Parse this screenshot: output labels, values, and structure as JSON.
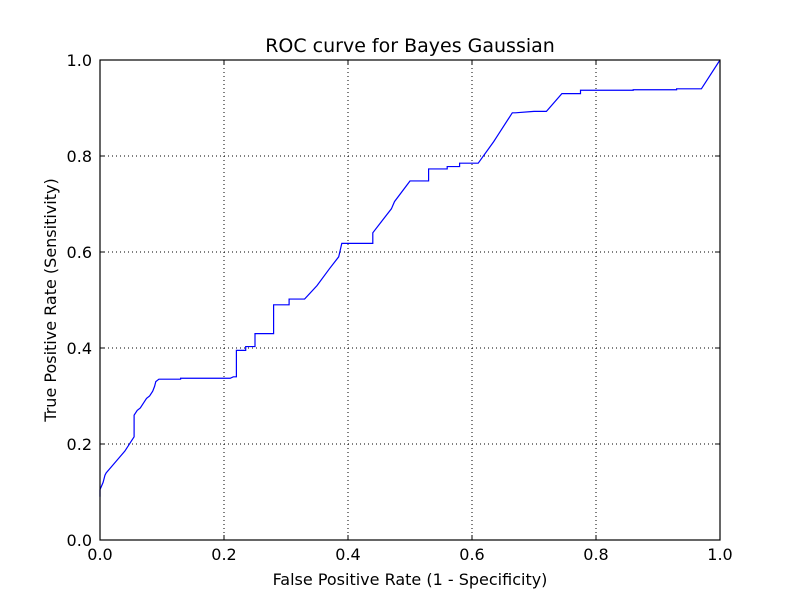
{
  "chart_data": {
    "type": "line",
    "title": "ROC curve for Bayes Gaussian",
    "xlabel": "False Positive Rate (1 - Specificity)",
    "ylabel": "True Positive Rate (Sensitivity)",
    "xlim": [
      0.0,
      1.0
    ],
    "ylim": [
      0.0,
      1.0
    ],
    "xticks": [
      "0.0",
      "0.2",
      "0.4",
      "0.6",
      "0.8",
      "1.0"
    ],
    "yticks": [
      "0.0",
      "0.2",
      "0.4",
      "0.6",
      "0.8",
      "1.0"
    ],
    "grid": true,
    "series": [
      {
        "color": "#0000ff",
        "x": [
          0.0,
          0.0,
          0.005,
          0.008,
          0.01,
          0.02,
          0.03,
          0.04,
          0.05,
          0.055,
          0.055,
          0.06,
          0.065,
          0.07,
          0.075,
          0.08,
          0.085,
          0.088,
          0.09,
          0.095,
          0.13,
          0.13,
          0.21,
          0.215,
          0.22,
          0.22,
          0.225,
          0.235,
          0.235,
          0.24,
          0.245,
          0.25,
          0.25,
          0.28,
          0.28,
          0.305,
          0.305,
          0.33,
          0.35,
          0.37,
          0.385,
          0.39,
          0.44,
          0.44,
          0.455,
          0.47,
          0.475,
          0.5,
          0.53,
          0.53,
          0.56,
          0.56,
          0.58,
          0.58,
          0.61,
          0.635,
          0.64,
          0.665,
          0.67,
          0.7,
          0.72,
          0.745,
          0.75,
          0.775,
          0.775,
          0.8,
          0.86,
          0.86,
          0.93,
          0.93,
          0.97,
          1.0
        ],
        "y": [
          0.09,
          0.105,
          0.12,
          0.135,
          0.14,
          0.155,
          0.17,
          0.185,
          0.205,
          0.215,
          0.26,
          0.27,
          0.275,
          0.285,
          0.295,
          0.3,
          0.31,
          0.32,
          0.33,
          0.335,
          0.335,
          0.337,
          0.337,
          0.34,
          0.34,
          0.395,
          0.395,
          0.395,
          0.403,
          0.403,
          0.403,
          0.403,
          0.43,
          0.43,
          0.49,
          0.49,
          0.502,
          0.502,
          0.53,
          0.565,
          0.59,
          0.618,
          0.618,
          0.64,
          0.665,
          0.69,
          0.705,
          0.748,
          0.748,
          0.773,
          0.773,
          0.778,
          0.778,
          0.785,
          0.785,
          0.83,
          0.84,
          0.89,
          0.89,
          0.893,
          0.893,
          0.93,
          0.93,
          0.93,
          0.937,
          0.937,
          0.937,
          0.938,
          0.938,
          0.94,
          0.94,
          1.0
        ]
      }
    ]
  }
}
